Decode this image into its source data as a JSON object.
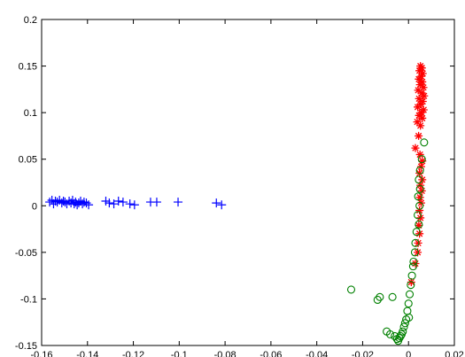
{
  "chart_data": {
    "type": "scatter",
    "title": "",
    "xlabel": "",
    "ylabel": "",
    "xlim": [
      -0.16,
      0.02
    ],
    "ylim": [
      -0.15,
      0.2
    ],
    "grid": false,
    "xticks": [
      -0.16,
      -0.14,
      -0.12,
      -0.1,
      -0.08,
      -0.06,
      -0.04,
      -0.02,
      0,
      0.02
    ],
    "xtick_labels": [
      "-0.16",
      "-0.14",
      "-0.12",
      "-0.1",
      "-0.08",
      "-0.06",
      "-0.04",
      "-0.02",
      "0",
      "0.02"
    ],
    "yticks": [
      -0.15,
      -0.1,
      -0.05,
      0,
      0.05,
      0.1,
      0.15,
      0.2
    ],
    "ytick_labels": [
      "-0.15",
      "-0.1",
      "-0.05",
      "0",
      "0.05",
      "0.1",
      "0.15",
      "0.2"
    ],
    "series": [
      {
        "marker": "plus",
        "color": "#0000ff",
        "points": [
          [
            -0.1565,
            0.004
          ],
          [
            -0.1555,
            0.006
          ],
          [
            -0.1548,
            0.002
          ],
          [
            -0.154,
            0.005
          ],
          [
            -0.1532,
            0.004
          ],
          [
            -0.1522,
            0.006
          ],
          [
            -0.1512,
            0.003
          ],
          [
            -0.1505,
            0.005
          ],
          [
            -0.1498,
            0.004
          ],
          [
            -0.149,
            0.002
          ],
          [
            -0.148,
            0.005
          ],
          [
            -0.1472,
            0.003
          ],
          [
            -0.1465,
            0.006
          ],
          [
            -0.1458,
            0.002
          ],
          [
            -0.1452,
            0.004
          ],
          [
            -0.1445,
            0.001
          ],
          [
            -0.1438,
            0.003
          ],
          [
            -0.143,
            0.005
          ],
          [
            -0.1422,
            0.002
          ],
          [
            -0.1415,
            0.004
          ],
          [
            -0.1405,
            0.003
          ],
          [
            -0.1395,
            0.001
          ],
          [
            -0.132,
            0.005
          ],
          [
            -0.1305,
            0.003
          ],
          [
            -0.1285,
            0.002
          ],
          [
            -0.1265,
            0.005
          ],
          [
            -0.1245,
            0.004
          ],
          [
            -0.1215,
            0.002
          ],
          [
            -0.1195,
            0.001
          ],
          [
            -0.1125,
            0.004
          ],
          [
            -0.1098,
            0.004
          ],
          [
            -0.1005,
            0.004
          ],
          [
            -0.0838,
            0.003
          ],
          [
            -0.0815,
            0.001
          ]
        ]
      },
      {
        "marker": "star",
        "color": "#ff0000",
        "points": [
          [
            0.0052,
            0.15
          ],
          [
            0.0058,
            0.148
          ],
          [
            0.0048,
            0.145
          ],
          [
            0.0062,
            0.142
          ],
          [
            0.0055,
            0.139
          ],
          [
            0.0045,
            0.136
          ],
          [
            0.006,
            0.133
          ],
          [
            0.005,
            0.13
          ],
          [
            0.0065,
            0.127
          ],
          [
            0.0042,
            0.124
          ],
          [
            0.0058,
            0.121
          ],
          [
            0.0068,
            0.118
          ],
          [
            0.0046,
            0.115
          ],
          [
            0.0062,
            0.112
          ],
          [
            0.0052,
            0.109
          ],
          [
            0.004,
            0.106
          ],
          [
            0.0066,
            0.103
          ],
          [
            0.0056,
            0.1
          ],
          [
            0.0046,
            0.097
          ],
          [
            0.006,
            0.094
          ],
          [
            0.0038,
            0.09
          ],
          [
            0.0052,
            0.086
          ],
          [
            0.0044,
            0.075
          ],
          [
            0.003,
            0.062
          ],
          [
            0.005,
            0.055
          ],
          [
            0.006,
            0.048
          ],
          [
            0.0055,
            0.042
          ],
          [
            0.0048,
            0.035
          ],
          [
            0.006,
            0.028
          ],
          [
            0.0052,
            0.022
          ],
          [
            0.0058,
            0.016
          ],
          [
            0.005,
            0.009
          ],
          [
            0.0055,
            0.003
          ],
          [
            0.0048,
            -0.005
          ],
          [
            0.0052,
            -0.013
          ],
          [
            0.0045,
            -0.021
          ],
          [
            0.0048,
            -0.03
          ],
          [
            0.0042,
            -0.04
          ],
          [
            0.004,
            -0.05
          ],
          [
            0.003,
            -0.062
          ],
          [
            0.0012,
            -0.082
          ]
        ]
      },
      {
        "marker": "circle",
        "color": "#008000",
        "points": [
          [
            0.0068,
            0.068
          ],
          [
            0.0058,
            0.05
          ],
          [
            0.005,
            0.038
          ],
          [
            0.0045,
            0.028
          ],
          [
            0.005,
            0.018
          ],
          [
            0.0042,
            0.01
          ],
          [
            0.0048,
            0.0
          ],
          [
            0.004,
            -0.01
          ],
          [
            0.0045,
            -0.02
          ],
          [
            0.0035,
            -0.028
          ],
          [
            0.003,
            -0.04
          ],
          [
            0.0028,
            -0.05
          ],
          [
            0.0022,
            -0.06
          ],
          [
            0.002,
            -0.065
          ],
          [
            0.0015,
            -0.075
          ],
          [
            0.001,
            -0.085
          ],
          [
            0.0005,
            -0.095
          ],
          [
            0.0,
            -0.105
          ],
          [
            -0.0005,
            -0.113
          ],
          [
            0.0002,
            -0.12
          ],
          [
            -0.001,
            -0.122
          ],
          [
            -0.0015,
            -0.126
          ],
          [
            -0.002,
            -0.13
          ],
          [
            -0.0025,
            -0.135
          ],
          [
            -0.003,
            -0.138
          ],
          [
            -0.0035,
            -0.14
          ],
          [
            -0.004,
            -0.142
          ],
          [
            -0.0045,
            -0.145
          ],
          [
            -0.005,
            -0.143
          ],
          [
            -0.006,
            -0.14
          ],
          [
            -0.008,
            -0.138
          ],
          [
            -0.0095,
            -0.135
          ],
          [
            -0.007,
            -0.098
          ],
          [
            -0.0125,
            -0.098
          ],
          [
            -0.0135,
            -0.101
          ],
          [
            -0.025,
            -0.09
          ]
        ]
      }
    ]
  }
}
